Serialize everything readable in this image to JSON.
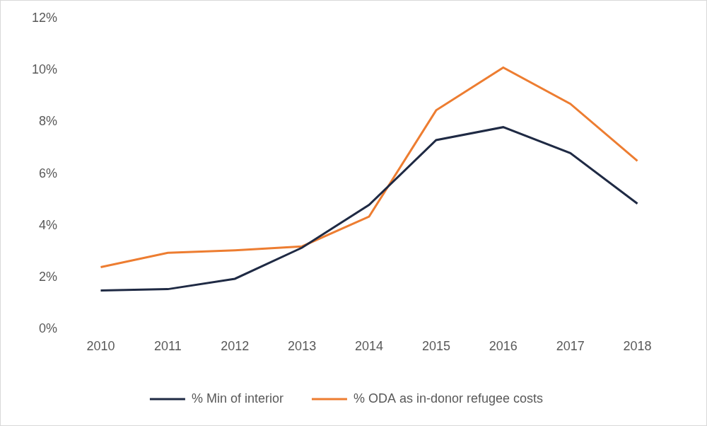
{
  "chart_data": {
    "type": "line",
    "categories": [
      "2010",
      "2011",
      "2012",
      "2013",
      "2014",
      "2015",
      "2016",
      "2017",
      "2018"
    ],
    "series": [
      {
        "name": "% Min of interior",
        "color": "#1f2a44",
        "values": [
          1.5,
          1.55,
          1.95,
          3.15,
          4.8,
          7.3,
          7.8,
          6.8,
          4.85
        ]
      },
      {
        "name": "% ODA as in-donor refugee costs",
        "color": "#ed7d31",
        "values": [
          2.4,
          2.95,
          3.05,
          3.2,
          4.35,
          8.45,
          10.1,
          8.7,
          6.5
        ]
      }
    ],
    "ylim": [
      0,
      12
    ],
    "yticks": [
      {
        "value": 0,
        "label": "0%"
      },
      {
        "value": 2,
        "label": "2%"
      },
      {
        "value": 4,
        "label": "4%"
      },
      {
        "value": 6,
        "label": "6%"
      },
      {
        "value": 8,
        "label": "8%"
      },
      {
        "value": 10,
        "label": "10%"
      },
      {
        "value": 12,
        "label": "12%"
      }
    ],
    "grid": false,
    "legend": "bottom"
  }
}
